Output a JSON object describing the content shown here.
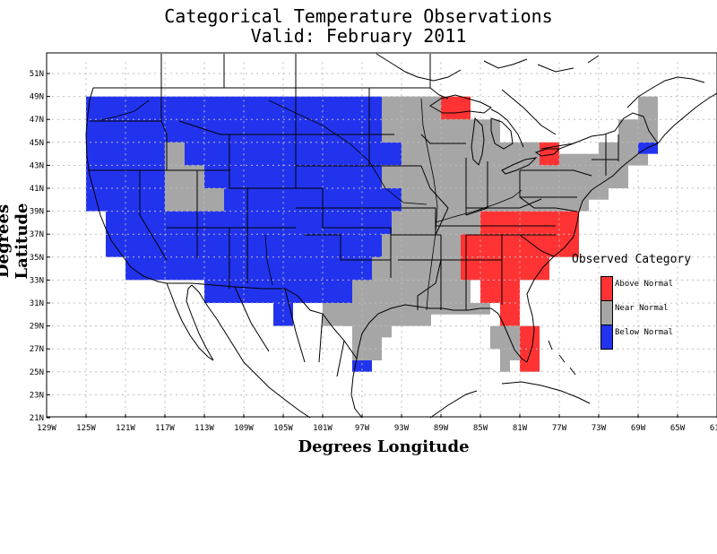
{
  "title": "Categorical Temperature Observations",
  "subtitle": "Valid: February 2011",
  "xlabel": "Degrees Longitude",
  "ylabel": "Degrees Latitude",
  "legend": {
    "title": "Observed Category",
    "items": [
      {
        "label": "Above Normal",
        "color": "#ff3333"
      },
      {
        "label": "Near Normal",
        "color": "#a6a6a6"
      },
      {
        "label": "Below Normal",
        "color": "#2233ee"
      }
    ]
  },
  "x_ticks": [
    "129W",
    "125W",
    "121W",
    "117W",
    "113W",
    "109W",
    "105W",
    "101W",
    "97W",
    "93W",
    "89W",
    "85W",
    "81W",
    "77W",
    "73W",
    "69W",
    "65W",
    "61W"
  ],
  "y_ticks": [
    "21N",
    "23N",
    "25N",
    "27N",
    "29N",
    "31N",
    "33N",
    "35N",
    "37N",
    "39N",
    "41N",
    "43N",
    "45N",
    "47N",
    "49N",
    "51N"
  ],
  "chart_data": {
    "type": "heatmap",
    "projection": "lat-lon",
    "xlim": [
      -129,
      -61
    ],
    "ylim": [
      21,
      52
    ],
    "grid": true,
    "categories": [
      "Above Normal",
      "Near Normal",
      "Below Normal"
    ],
    "regions": [
      {
        "category": "Below Normal",
        "polygon": [
          [
            -125,
            49
          ],
          [
            -95,
            49
          ],
          [
            -95,
            45
          ],
          [
            -93,
            45
          ],
          [
            -93,
            43
          ],
          [
            -95,
            43
          ],
          [
            -95,
            41
          ],
          [
            -93,
            41
          ],
          [
            -93,
            39
          ],
          [
            -94,
            39
          ],
          [
            -94,
            37
          ],
          [
            -95,
            37
          ],
          [
            -95,
            33
          ],
          [
            -96,
            33
          ],
          [
            -96,
            31
          ],
          [
            -98,
            31
          ],
          [
            -98,
            29
          ],
          [
            -99,
            29
          ],
          [
            -99,
            30
          ],
          [
            -101,
            30
          ],
          [
            -101,
            31
          ],
          [
            -104,
            31
          ],
          [
            -104,
            29
          ],
          [
            -106,
            29
          ],
          [
            -106,
            31
          ],
          [
            -113,
            31
          ],
          [
            -113,
            33
          ],
          [
            -121,
            33
          ],
          [
            -121,
            35
          ],
          [
            -123,
            35
          ],
          [
            -123,
            39
          ],
          [
            -125,
            39
          ]
        ]
      },
      {
        "category": "Below Normal",
        "polygon": [
          [
            -95,
            30
          ],
          [
            -94,
            30
          ],
          [
            -94,
            31
          ],
          [
            -95,
            31
          ]
        ]
      },
      {
        "category": "Below Normal",
        "polygon": [
          [
            -96,
            26
          ],
          [
            -95,
            26
          ],
          [
            -95,
            28
          ],
          [
            -96,
            28
          ]
        ]
      },
      {
        "category": "Below Normal",
        "polygon": [
          [
            -98,
            25
          ],
          [
            -96,
            25
          ],
          [
            -96,
            27
          ],
          [
            -98,
            27
          ]
        ]
      },
      {
        "category": "Below Normal",
        "polygon": [
          [
            -86,
            41
          ],
          [
            -85,
            41
          ],
          [
            -85,
            43
          ],
          [
            -86,
            43
          ]
        ]
      },
      {
        "category": "Below Normal",
        "polygon": [
          [
            -72,
            41
          ],
          [
            -70,
            41
          ],
          [
            -70,
            43
          ],
          [
            -68,
            43
          ],
          [
            -68,
            44
          ],
          [
            -67,
            44
          ],
          [
            -67,
            45
          ],
          [
            -69,
            45
          ],
          [
            -69,
            44
          ],
          [
            -72,
            44
          ]
        ]
      },
      {
        "category": "Near Normal",
        "polygon": [
          [
            -95,
            49
          ],
          [
            -89,
            49
          ],
          [
            -89,
            48
          ],
          [
            -86,
            48
          ],
          [
            -86,
            47
          ],
          [
            -83,
            47
          ],
          [
            -83,
            45
          ],
          [
            -79,
            45
          ],
          [
            -79,
            43
          ],
          [
            -78,
            43
          ],
          [
            -78,
            44
          ],
          [
            -73,
            44
          ],
          [
            -73,
            45
          ],
          [
            -71,
            45
          ],
          [
            -71,
            47
          ],
          [
            -69,
            47
          ],
          [
            -69,
            49
          ],
          [
            -67,
            49
          ],
          [
            -67,
            45
          ],
          [
            -69,
            45
          ],
          [
            -69,
            44
          ],
          [
            -68,
            44
          ],
          [
            -68,
            43
          ],
          [
            -70,
            43
          ],
          [
            -70,
            41
          ],
          [
            -72,
            41
          ],
          [
            -72,
            40
          ],
          [
            -74,
            40
          ],
          [
            -74,
            39
          ],
          [
            -76,
            39
          ],
          [
            -76,
            37
          ],
          [
            -75,
            37
          ],
          [
            -75,
            39
          ],
          [
            -85,
            39
          ],
          [
            -85,
            37
          ],
          [
            -87,
            37
          ],
          [
            -87,
            33
          ],
          [
            -86,
            33
          ],
          [
            -86,
            31
          ],
          [
            -84,
            31
          ],
          [
            -84,
            27
          ],
          [
            -83,
            27
          ],
          [
            -83,
            25
          ],
          [
            -82,
            25
          ],
          [
            -82,
            26
          ],
          [
            -81,
            26
          ],
          [
            -81,
            29
          ],
          [
            -84,
            29
          ],
          [
            -84,
            30
          ],
          [
            -90,
            30
          ],
          [
            -90,
            29
          ],
          [
            -94,
            29
          ],
          [
            -94,
            28
          ],
          [
            -95,
            28
          ],
          [
            -95,
            26
          ],
          [
            -98,
            26
          ],
          [
            -98,
            29
          ],
          [
            -101,
            29
          ],
          [
            -101,
            31
          ],
          [
            -98,
            31
          ],
          [
            -98,
            33
          ],
          [
            -96,
            33
          ],
          [
            -96,
            35
          ],
          [
            -95,
            35
          ],
          [
            -95,
            37
          ],
          [
            -94,
            37
          ],
          [
            -94,
            39
          ],
          [
            -93,
            39
          ],
          [
            -93,
            41
          ],
          [
            -95,
            41
          ],
          [
            -95,
            43
          ],
          [
            -93,
            43
          ],
          [
            -93,
            45
          ],
          [
            -95,
            45
          ]
        ]
      },
      {
        "category": "Near Normal",
        "polygon": [
          [
            -117,
            45
          ],
          [
            -115,
            45
          ],
          [
            -115,
            43
          ],
          [
            -113,
            43
          ],
          [
            -113,
            41
          ],
          [
            -111,
            41
          ],
          [
            -111,
            39
          ],
          [
            -117,
            39
          ]
        ]
      },
      {
        "category": "Above Normal",
        "polygon": [
          [
            -89,
            49
          ],
          [
            -86,
            49
          ],
          [
            -86,
            47
          ],
          [
            -89,
            47
          ]
        ]
      },
      {
        "category": "Above Normal",
        "polygon": [
          [
            -79,
            45
          ],
          [
            -77,
            45
          ],
          [
            -77,
            43
          ],
          [
            -79,
            43
          ]
        ]
      },
      {
        "category": "Above Normal",
        "polygon": [
          [
            -85,
            39
          ],
          [
            -75,
            39
          ],
          [
            -75,
            35
          ],
          [
            -78,
            35
          ],
          [
            -78,
            33
          ],
          [
            -81,
            33
          ],
          [
            -81,
            29
          ],
          [
            -79,
            29
          ],
          [
            -79,
            25
          ],
          [
            -81,
            25
          ],
          [
            -81,
            29
          ],
          [
            -83,
            29
          ],
          [
            -83,
            31
          ],
          [
            -85,
            31
          ],
          [
            -85,
            33
          ],
          [
            -87,
            33
          ],
          [
            -87,
            37
          ],
          [
            -85,
            37
          ]
        ]
      }
    ]
  }
}
